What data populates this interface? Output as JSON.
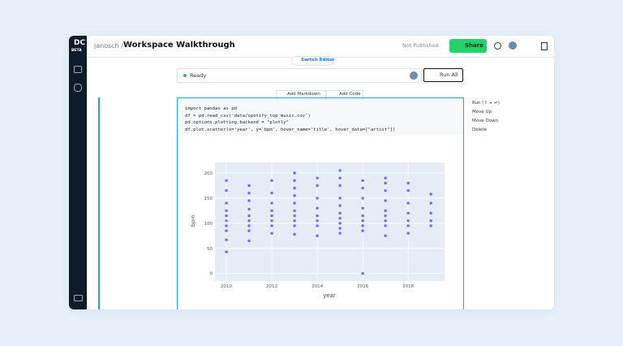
{
  "header": {
    "logo_badge": "BETA",
    "owner": "janosch /",
    "title": "Workspace Walkthrough",
    "publish_status": "Not Published",
    "share": "Share"
  },
  "editor": {
    "switch": "Switch Editor",
    "status": "Ready",
    "run_all": "Run All",
    "add_markdown": "Add Markdown",
    "add_code": "Add Code"
  },
  "cell": {
    "code_lines": [
      "import pandas as pd",
      "df = pd.read_csv('data/spotify_top_music.csv')",
      "pd.options.plotting.backend = \"plotly\"",
      "df.plot.scatter(x='year', y='bpm', hover_name='title', hover_data=[\"artist\"])"
    ],
    "menu": [
      "Run (⇧ + ↵)",
      "Move Up",
      "Move Down",
      "Delete"
    ]
  },
  "chart_data": {
    "type": "scatter",
    "x_label": "year",
    "y_label": "bpm",
    "color": "#636efa",
    "grid": true,
    "x": [
      2010,
      2010,
      2010,
      2010,
      2010,
      2010,
      2010,
      2010,
      2010,
      2010,
      2011,
      2011,
      2011,
      2011,
      2011,
      2011,
      2011,
      2011,
      2011,
      2012,
      2012,
      2012,
      2012,
      2012,
      2012,
      2012,
      2012,
      2013,
      2013,
      2013,
      2013,
      2013,
      2013,
      2013,
      2013,
      2013,
      2013,
      2014,
      2014,
      2014,
      2014,
      2014,
      2014,
      2014,
      2014,
      2015,
      2015,
      2015,
      2015,
      2015,
      2015,
      2015,
      2015,
      2015,
      2015,
      2016,
      2016,
      2016,
      2016,
      2016,
      2016,
      2016,
      2016,
      2016,
      2017,
      2017,
      2017,
      2017,
      2017,
      2017,
      2017,
      2017,
      2017,
      2018,
      2018,
      2018,
      2018,
      2018,
      2018,
      2018,
      2019,
      2019,
      2019,
      2019,
      2019
    ],
    "values": [
      43,
      67,
      85,
      95,
      105,
      115,
      125,
      140,
      165,
      185,
      65,
      85,
      95,
      105,
      115,
      128,
      145,
      160,
      175,
      80,
      95,
      105,
      115,
      125,
      140,
      160,
      185,
      78,
      95,
      105,
      115,
      125,
      140,
      155,
      170,
      185,
      200,
      75,
      95,
      105,
      115,
      130,
      150,
      175,
      190,
      80,
      90,
      100,
      110,
      120,
      135,
      150,
      175,
      190,
      205,
      0,
      85,
      95,
      105,
      115,
      130,
      150,
      170,
      185,
      75,
      95,
      105,
      115,
      125,
      145,
      165,
      180,
      190,
      80,
      95,
      105,
      120,
      140,
      165,
      180,
      95,
      105,
      120,
      140,
      158
    ],
    "xlim": [
      2009.5,
      2019.6
    ],
    "ylim": [
      -15,
      221
    ],
    "xticks": [
      2010,
      2012,
      2014,
      2016,
      2018
    ],
    "yticks": [
      0,
      50,
      100,
      150,
      200
    ]
  }
}
